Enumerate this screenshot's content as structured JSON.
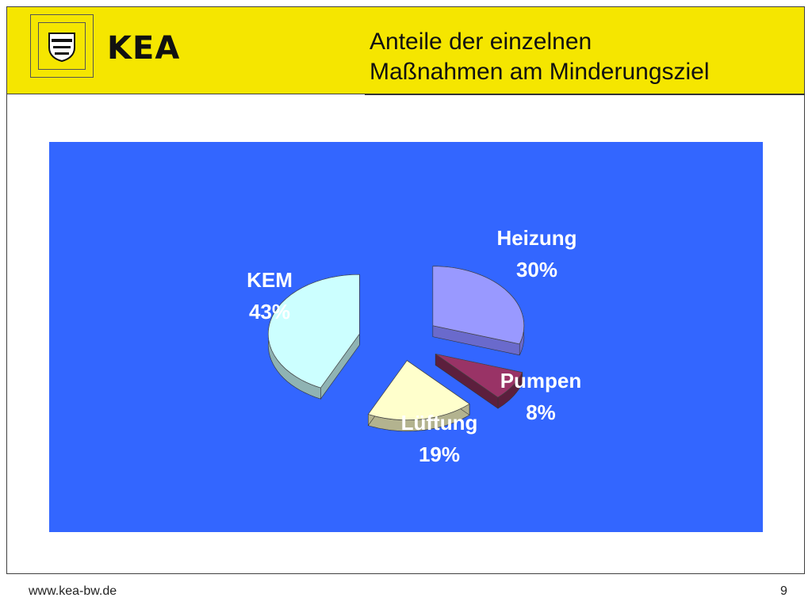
{
  "header": {
    "brand": "KEA",
    "title_line1": "Anteile der einzelnen",
    "title_line2": "Maßnahmen am Minderungsziel",
    "band_color": "#f5e600"
  },
  "logo": {
    "icon": "coat-of-arms-icon"
  },
  "chart_data": {
    "type": "pie",
    "style": "3d-exploded",
    "background": "#3366ff",
    "slices": [
      {
        "label": "Heizung",
        "value": 30,
        "display": "30%",
        "color": "#9999ff",
        "side": "#6a6acc"
      },
      {
        "label": "Pumpen",
        "value": 8,
        "display": "8%",
        "color": "#993366",
        "side": "#5c1f3d"
      },
      {
        "label": "Lüftung",
        "value": 19,
        "display": "19%",
        "color": "#ffffcc",
        "side": "#b3b38f"
      },
      {
        "label": "KEM",
        "value": 43,
        "display": "43%",
        "color": "#ccffff",
        "side": "#8fb3b3"
      }
    ]
  },
  "footer": {
    "url": "www.kea-bw.de",
    "page": "9"
  }
}
